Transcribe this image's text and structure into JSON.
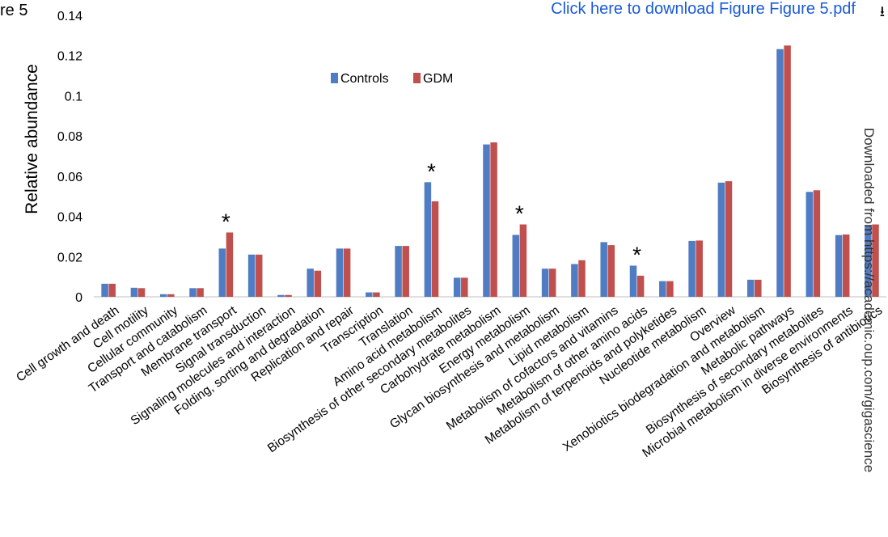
{
  "header": {
    "figure_label": "re 5",
    "download_link": "Click here to download Figure Figure 5.pdf",
    "download_icon": "download-icon"
  },
  "side_note": "Downloaded from https://academic.oup.com/gigascience",
  "colors": {
    "controls": "#4f7cc3",
    "gdm": "#c0504d"
  },
  "chart_data": {
    "type": "bar",
    "title": "",
    "xlabel": "",
    "ylabel": "Relative abundance",
    "ylim": [
      0,
      0.14
    ],
    "yticks": [
      "0",
      "0.02",
      "0.04",
      "0.06",
      "0.08",
      "0.1",
      "0.12",
      "0.14"
    ],
    "grid": false,
    "legend_position": "top-center",
    "categories": [
      "Cell growth and death",
      "Cell motility",
      "Cellular community",
      "Transport and catabolism",
      "Membrane transport",
      "Signal transduction",
      "Signaling molecules and interaction",
      "Folding, sorting and degradation",
      "Replication and repair",
      "Transcription",
      "Translation",
      "Amino acid metabolism",
      "Biosynthesis of other secondary metabolites",
      "Carbohydrate metabolism",
      "Energy metabolism",
      "Glycan biosynthesis and metabolism",
      "Lipid metabolism",
      "Metabolism of cofactors and vitamins",
      "Metabolism of other amino acids",
      "Metabolism of terpenoids and polyketides",
      "Nucleotide metabolism",
      "Overview",
      "Xenobiotics biodegradation and metabolism",
      "Metabolic pathways",
      "Biosynthesis of secondary metabolites",
      "Microbial metabolism in diverse environments",
      "Biosynthesis of antibiotics"
    ],
    "series": [
      {
        "name": "Controls",
        "values": [
          0.0065,
          0.0045,
          0.0013,
          0.0043,
          0.024,
          0.021,
          0.0009,
          0.014,
          0.024,
          0.0022,
          0.0253,
          0.057,
          0.0095,
          0.0758,
          0.0308,
          0.014,
          0.0163,
          0.0272,
          0.0155,
          0.0078,
          0.0278,
          0.0568,
          0.0085,
          0.1232,
          0.0522,
          0.0307,
          0.0355
        ]
      },
      {
        "name": "GDM",
        "values": [
          0.0065,
          0.0043,
          0.0013,
          0.0043,
          0.032,
          0.021,
          0.0009,
          0.013,
          0.024,
          0.0022,
          0.0253,
          0.0475,
          0.0095,
          0.0768,
          0.036,
          0.014,
          0.0182,
          0.0257,
          0.0105,
          0.0078,
          0.028,
          0.0575,
          0.0085,
          0.125,
          0.053,
          0.031,
          0.036
        ]
      }
    ],
    "annotations": [
      {
        "category": "Membrane transport",
        "text": "*"
      },
      {
        "category": "Amino acid metabolism",
        "text": "*"
      },
      {
        "category": "Energy metabolism",
        "text": "*"
      },
      {
        "category": "Metabolism of other amino acids",
        "text": "*"
      }
    ]
  }
}
